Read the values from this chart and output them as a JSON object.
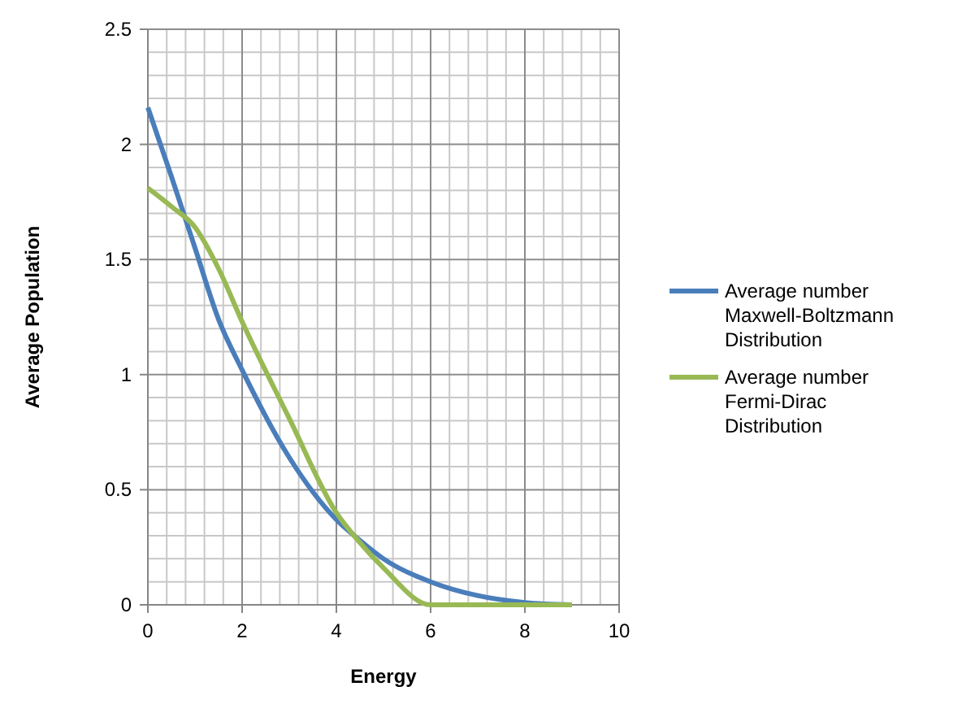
{
  "chart_data": {
    "type": "line",
    "xlabel": "Energy",
    "ylabel": "Average Population",
    "x": [
      0,
      0.5,
      1,
      1.5,
      2,
      3,
      4,
      4.5,
      5,
      6,
      7,
      8,
      9
    ],
    "series": [
      {
        "name": "Average number Maxwell-Boltzmann Distribution",
        "color": "#4a7ebb",
        "values": [
          2.16,
          1.86,
          1.55,
          1.24,
          1.02,
          0.64,
          0.37,
          0.28,
          0.2,
          0.1,
          0.04,
          0.01,
          0
        ]
      },
      {
        "name": "Average number Fermi-Dirac Distribution",
        "color": "#98b954",
        "values": [
          1.81,
          1.73,
          1.64,
          1.46,
          1.23,
          0.81,
          0.4,
          0.27,
          0.16,
          0,
          0,
          0,
          0
        ]
      }
    ],
    "xlim": [
      0,
      10
    ],
    "xticks": [
      0,
      2,
      4,
      6,
      8,
      10
    ],
    "ylim": [
      0,
      2.5
    ],
    "yticks": [
      0,
      0.5,
      1,
      1.5,
      2,
      2.5
    ],
    "grid": true,
    "legend": "right",
    "line_style": "solid"
  }
}
